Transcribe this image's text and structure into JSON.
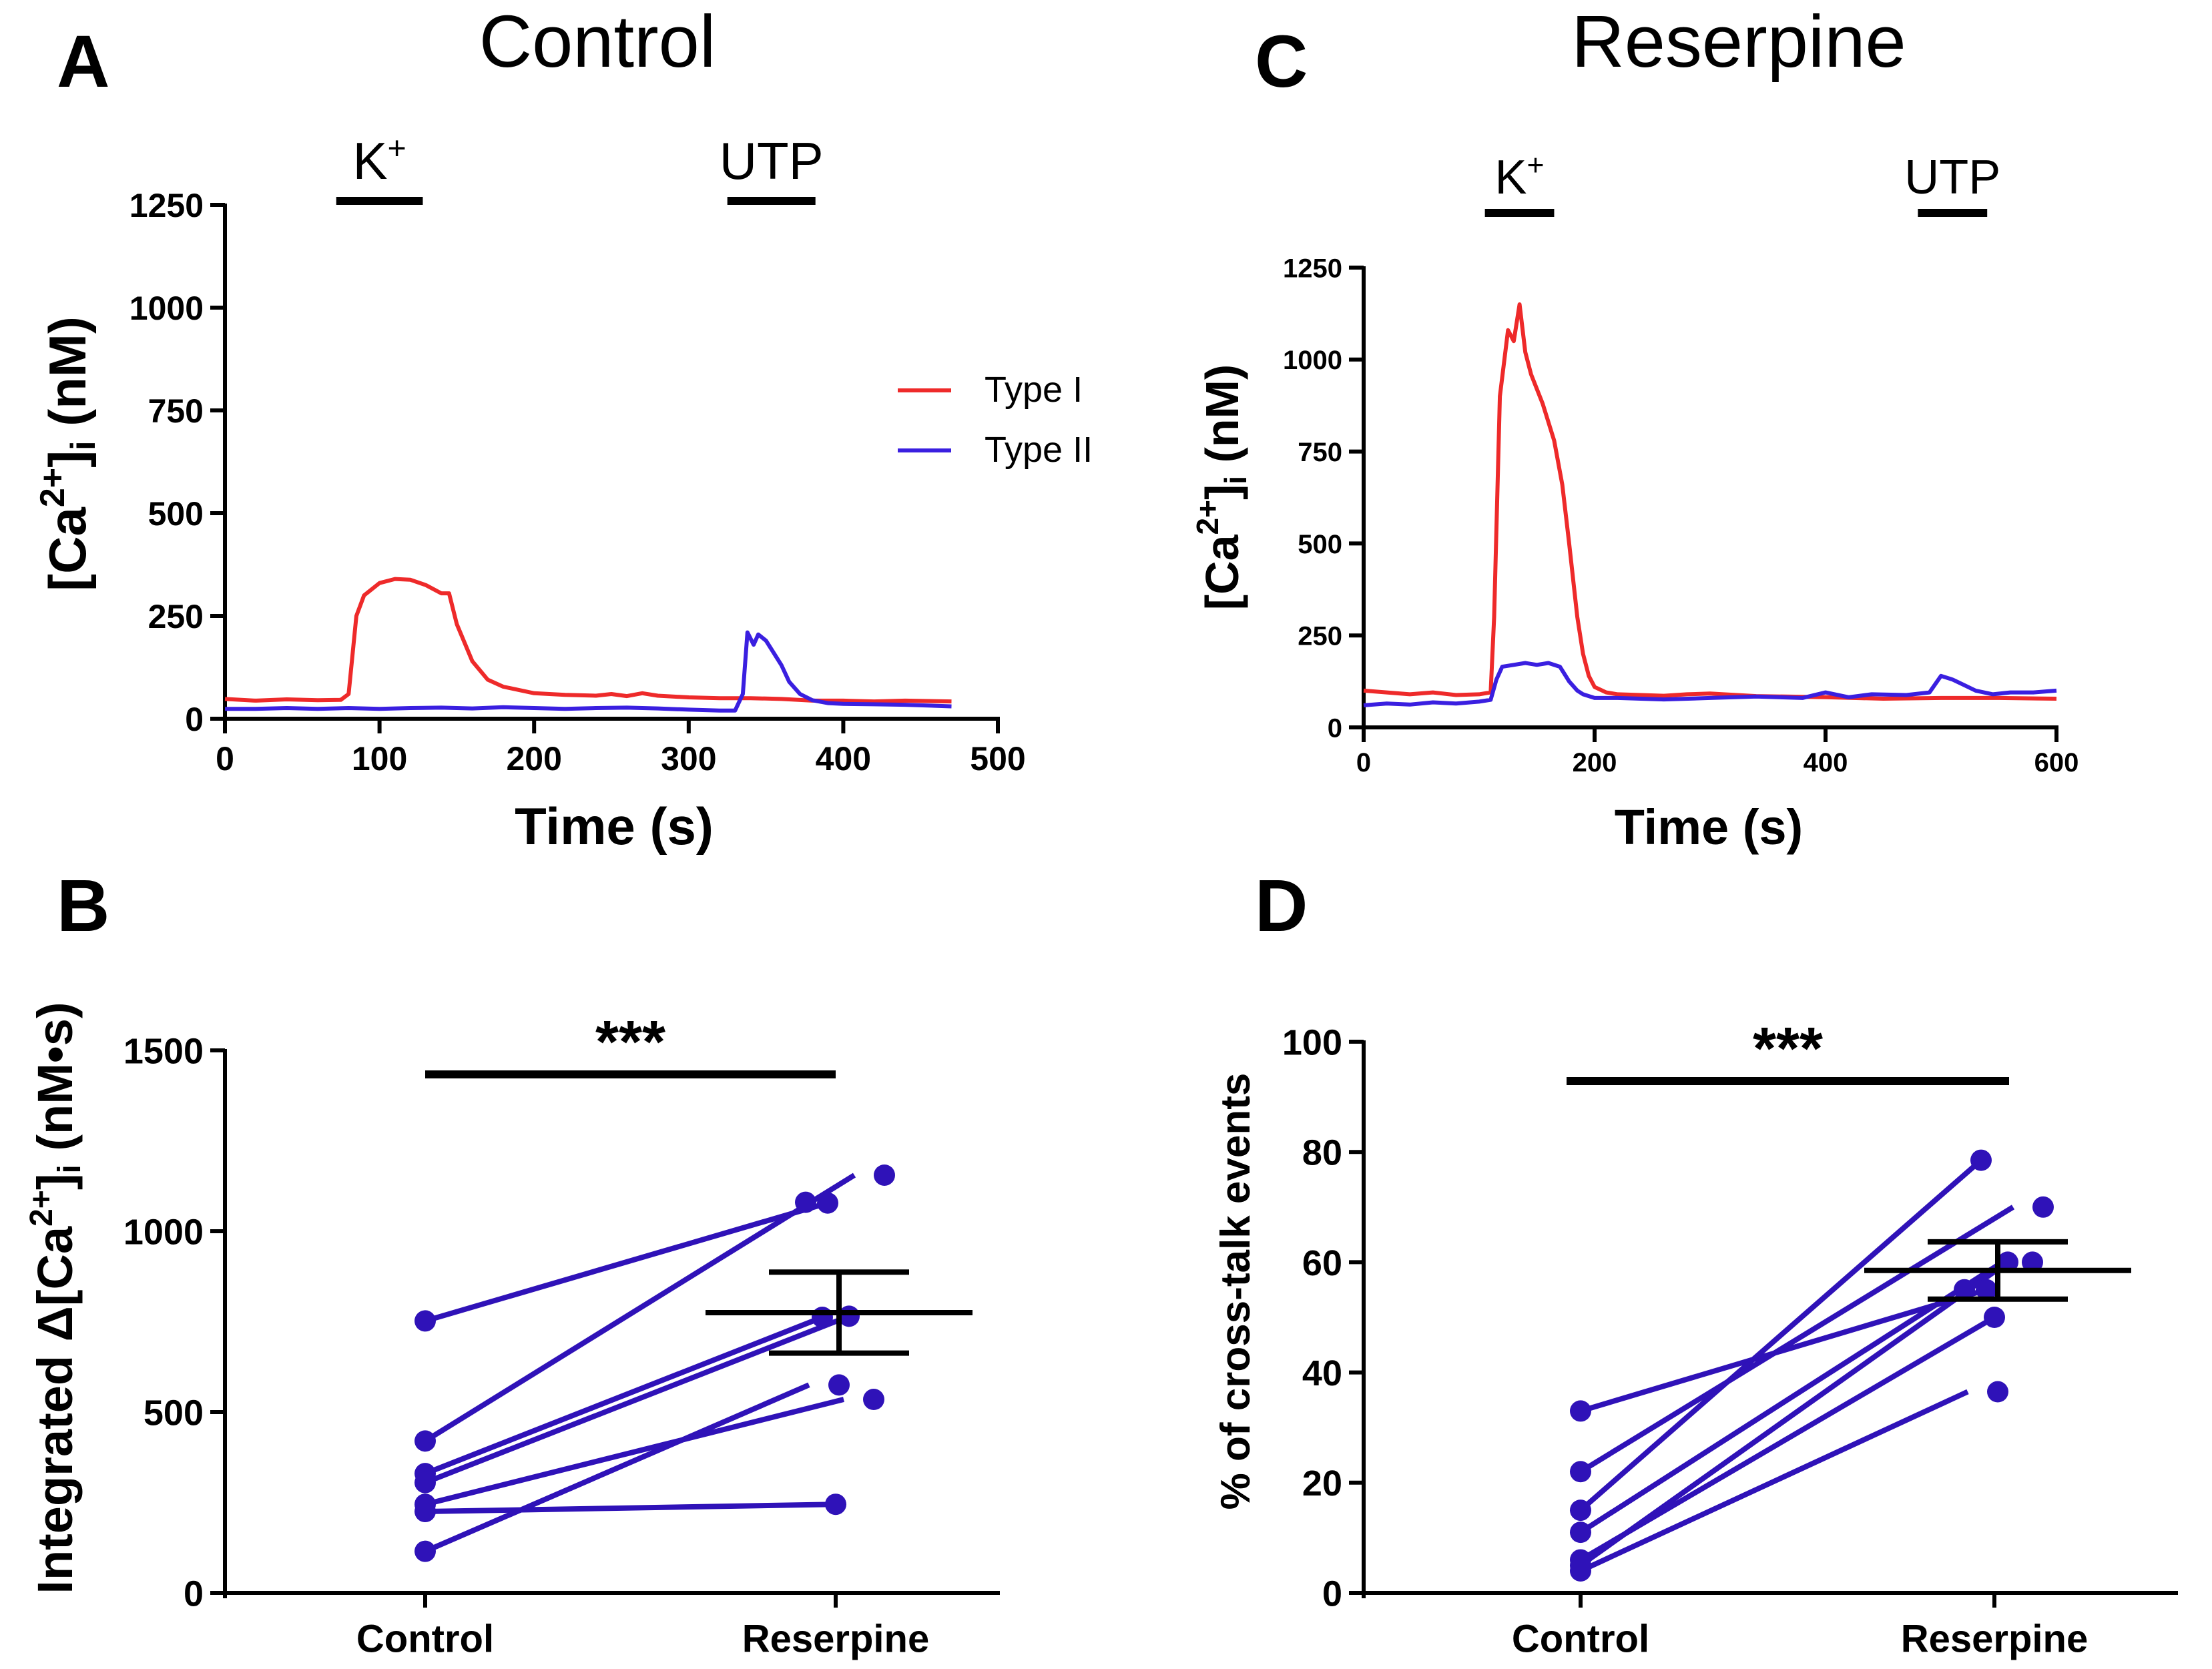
{
  "colors": {
    "type1": "#ee2a2a",
    "type2": "#3a1fe0",
    "paired": "#2f12b8",
    "axis": "#000000"
  },
  "chart_data": [
    {
      "panel": "A",
      "type": "line",
      "title": "Control",
      "xlabel": "Time (s)",
      "ylabel": "[Ca2+]i (nM)",
      "xlim": [
        0,
        500
      ],
      "ylim": [
        0,
        1250
      ],
      "xticks": [
        "0",
        "100",
        "200",
        "300",
        "400",
        "500"
      ],
      "yticks": [
        "0",
        "250",
        "500",
        "750",
        "1000",
        "1250"
      ],
      "stimuli": [
        {
          "label": "K",
          "sup": "+",
          "start": 72,
          "end": 128
        },
        {
          "label": "UTP",
          "start": 325,
          "end": 382
        }
      ],
      "legend": [
        "Type I",
        "Type II"
      ],
      "series": [
        {
          "name": "Type I",
          "x": [
            0,
            20,
            40,
            60,
            75,
            80,
            85,
            90,
            100,
            110,
            120,
            130,
            140,
            145,
            150,
            160,
            170,
            180,
            200,
            220,
            240,
            250,
            260,
            270,
            280,
            300,
            320,
            340,
            360,
            380,
            400,
            420,
            440,
            470
          ],
          "y": [
            48,
            44,
            47,
            45,
            46,
            60,
            250,
            300,
            330,
            340,
            338,
            325,
            305,
            305,
            230,
            140,
            95,
            78,
            62,
            58,
            56,
            60,
            55,
            62,
            56,
            52,
            50,
            50,
            48,
            44,
            44,
            42,
            44,
            42
          ]
        },
        {
          "name": "Type II",
          "x": [
            0,
            20,
            40,
            60,
            80,
            100,
            120,
            140,
            160,
            180,
            200,
            220,
            240,
            260,
            280,
            300,
            320,
            330,
            335,
            338,
            342,
            345,
            350,
            355,
            360,
            365,
            372,
            380,
            390,
            400,
            420,
            440,
            470
          ],
          "y": [
            24,
            24,
            26,
            24,
            26,
            24,
            26,
            27,
            25,
            28,
            26,
            24,
            26,
            27,
            25,
            22,
            20,
            20,
            60,
            210,
            180,
            205,
            190,
            160,
            130,
            90,
            60,
            45,
            38,
            36,
            35,
            34,
            30
          ]
        }
      ]
    },
    {
      "panel": "C",
      "type": "line",
      "title": "Reserpine",
      "xlabel": "Time (s)",
      "ylabel": "[Ca2+]i (nM)",
      "xlim": [
        0,
        600
      ],
      "ylim": [
        0,
        1250
      ],
      "xticks": [
        "0",
        "200",
        "400",
        "600"
      ],
      "yticks": [
        "0",
        "250",
        "500",
        "750",
        "1000",
        "1250"
      ],
      "stimuli": [
        {
          "label": "K",
          "sup": "+",
          "start": 105,
          "end": 165
        },
        {
          "label": "UTP",
          "start": 480,
          "end": 540
        }
      ],
      "series": [
        {
          "name": "Type I",
          "x": [
            0,
            20,
            40,
            60,
            80,
            100,
            110,
            113,
            118,
            125,
            130,
            135,
            140,
            145,
            155,
            165,
            172,
            178,
            185,
            190,
            195,
            200,
            210,
            220,
            240,
            260,
            280,
            300,
            340,
            400,
            450,
            500,
            550,
            600
          ],
          "y": [
            100,
            95,
            90,
            95,
            88,
            90,
            95,
            300,
            900,
            1080,
            1050,
            1150,
            1020,
            960,
            880,
            780,
            660,
            500,
            300,
            200,
            140,
            110,
            95,
            90,
            88,
            86,
            90,
            92,
            85,
            82,
            78,
            80,
            80,
            78
          ]
        },
        {
          "name": "Type II",
          "x": [
            0,
            20,
            40,
            60,
            80,
            100,
            110,
            115,
            120,
            130,
            140,
            150,
            160,
            170,
            178,
            185,
            190,
            200,
            220,
            260,
            300,
            340,
            380,
            400,
            420,
            440,
            470,
            490,
            500,
            510,
            520,
            530,
            545,
            560,
            580,
            600
          ],
          "y": [
            60,
            65,
            62,
            68,
            65,
            70,
            75,
            130,
            165,
            170,
            175,
            170,
            175,
            165,
            125,
            100,
            90,
            80,
            80,
            76,
            80,
            84,
            80,
            95,
            82,
            90,
            88,
            95,
            140,
            130,
            115,
            100,
            90,
            95,
            95,
            100
          ]
        }
      ]
    },
    {
      "panel": "B",
      "type": "scatter",
      "categories": [
        "Control",
        "Reserpine"
      ],
      "ylabel": "Integrated Δ[Ca2+]i (nM•s)",
      "ylim": [
        0,
        1500
      ],
      "yticks": [
        "0",
        "500",
        "1000",
        "1500"
      ],
      "significance": "***",
      "pairs": [
        [
          752,
          1078
        ],
        [
          420,
          1155
        ],
        [
          330,
          762
        ],
        [
          245,
          535
        ],
        [
          225,
          245
        ],
        [
          115,
          575
        ],
        [
          305,
          765
        ]
      ],
      "extra_points": [
        1080
      ],
      "mean": 775,
      "sem": 112
    },
    {
      "panel": "D",
      "type": "scatter",
      "categories": [
        "Control",
        "Reserpine"
      ],
      "ylabel": "% of cross-talk events",
      "ylim": [
        0,
        100
      ],
      "yticks": [
        "0",
        "20",
        "40",
        "60",
        "80",
        "100"
      ],
      "significance": "***",
      "pairs": [
        [
          33,
          55
        ],
        [
          22,
          70
        ],
        [
          15,
          78.5
        ],
        [
          11,
          60
        ],
        [
          6,
          50
        ],
        [
          4,
          36.5
        ],
        [
          5,
          60
        ]
      ],
      "extra_points": [
        55
      ],
      "mean": 58.5,
      "sem": 5.2
    }
  ]
}
